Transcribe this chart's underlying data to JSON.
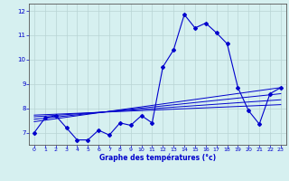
{
  "xlabel": "Graphe des températures (°c)",
  "bg_color": "#d6f0f0",
  "line_color": "#0000cc",
  "grid_color": "#b8d4d4",
  "xlim": [
    -0.5,
    23.5
  ],
  "ylim": [
    6.5,
    12.3
  ],
  "xticks": [
    0,
    1,
    2,
    3,
    4,
    5,
    6,
    7,
    8,
    9,
    10,
    11,
    12,
    13,
    14,
    15,
    16,
    17,
    18,
    19,
    20,
    21,
    22,
    23
  ],
  "yticks": [
    7,
    8,
    9,
    10,
    11,
    12
  ],
  "hours": [
    0,
    1,
    2,
    3,
    4,
    5,
    6,
    7,
    8,
    9,
    10,
    11,
    12,
    13,
    14,
    15,
    16,
    17,
    18,
    19,
    20,
    21,
    22,
    23
  ],
  "temps": [
    7.0,
    7.6,
    7.7,
    7.2,
    6.7,
    6.7,
    7.1,
    6.9,
    7.4,
    7.3,
    7.7,
    7.4,
    9.7,
    10.4,
    11.85,
    11.3,
    11.5,
    11.1,
    10.65,
    8.85,
    7.9,
    7.35,
    8.6,
    8.85
  ],
  "reg_lines": [
    {
      "x": [
        0,
        23
      ],
      "y": [
        7.45,
        8.85
      ]
    },
    {
      "x": [
        0,
        23
      ],
      "y": [
        7.55,
        8.6
      ]
    },
    {
      "x": [
        0,
        23
      ],
      "y": [
        7.65,
        8.35
      ]
    },
    {
      "x": [
        0,
        23
      ],
      "y": [
        7.72,
        8.15
      ]
    }
  ],
  "tick_labelsize": 4.5,
  "xlabel_fontsize": 5.5,
  "spine_color": "#555555"
}
